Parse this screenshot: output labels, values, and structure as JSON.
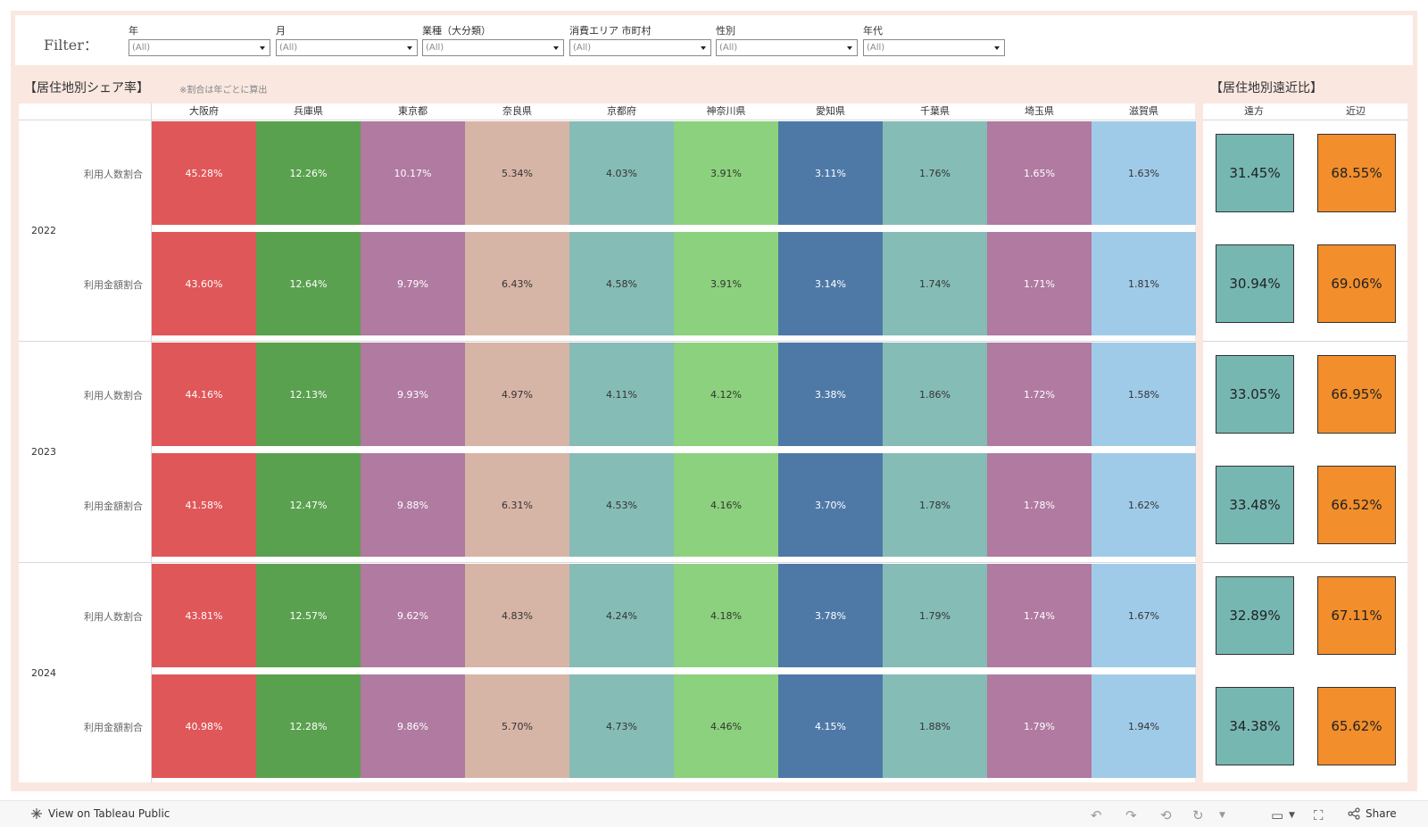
{
  "filters": {
    "title": "Filter：",
    "items": [
      {
        "label": "年",
        "value": "(All)"
      },
      {
        "label": "月",
        "value": "(All)"
      },
      {
        "label": "業種（大分類）",
        "value": "(All)"
      },
      {
        "label": "消費エリア 市町村",
        "value": "(All)"
      },
      {
        "label": "性別",
        "value": "(All)"
      },
      {
        "label": "年代",
        "value": "(All)"
      }
    ]
  },
  "share_title": "【居住地別シェア率】",
  "share_note": "※割合は年ごとに算出",
  "proximity_title": "【居住地別遠近比】",
  "toolbar": {
    "view_label": "View on Tableau Public",
    "share_label": "Share"
  },
  "chart_data": [
    {
      "type": "heatmap",
      "title": "【居住地別シェア率】",
      "columns": [
        "大阪府",
        "兵庫県",
        "東京都",
        "奈良県",
        "京都府",
        "神奈川県",
        "愛知県",
        "千葉県",
        "埼玉県",
        "滋賀県"
      ],
      "colors": [
        "#e05759",
        "#59a14e",
        "#b07aa1",
        "#d7b5a6",
        "#86bcb6",
        "#8cd17d",
        "#4e79a7",
        "#86bcb6",
        "#b07aa1",
        "#a0cbe8"
      ],
      "text_colors": [
        "#ffffff",
        "#ffffff",
        "#ffffff",
        "#333333",
        "#333333",
        "#333333",
        "#ffffff",
        "#333333",
        "#ffffff",
        "#333333"
      ],
      "rows": [
        {
          "year": "2022",
          "metric": "利用人数割合",
          "values": [
            "45.28%",
            "12.26%",
            "10.17%",
            "5.34%",
            "4.03%",
            "3.91%",
            "3.11%",
            "1.76%",
            "1.65%",
            "1.63%"
          ]
        },
        {
          "year": "2022",
          "metric": "利用金額割合",
          "values": [
            "43.60%",
            "12.64%",
            "9.79%",
            "6.43%",
            "4.58%",
            "3.91%",
            "3.14%",
            "1.74%",
            "1.71%",
            "1.81%"
          ]
        },
        {
          "year": "2023",
          "metric": "利用人数割合",
          "values": [
            "44.16%",
            "12.13%",
            "9.93%",
            "4.97%",
            "4.11%",
            "4.12%",
            "3.38%",
            "1.86%",
            "1.72%",
            "1.58%"
          ]
        },
        {
          "year": "2023",
          "metric": "利用金額割合",
          "values": [
            "41.58%",
            "12.47%",
            "9.88%",
            "6.31%",
            "4.53%",
            "4.16%",
            "3.70%",
            "1.78%",
            "1.78%",
            "1.62%"
          ]
        },
        {
          "year": "2024",
          "metric": "利用人数割合",
          "values": [
            "43.81%",
            "12.57%",
            "9.62%",
            "4.83%",
            "4.24%",
            "4.18%",
            "3.78%",
            "1.79%",
            "1.74%",
            "1.67%"
          ]
        },
        {
          "year": "2024",
          "metric": "利用金額割合",
          "values": [
            "40.98%",
            "12.28%",
            "9.86%",
            "5.70%",
            "4.73%",
            "4.46%",
            "4.15%",
            "1.88%",
            "1.79%",
            "1.94%"
          ]
        }
      ]
    },
    {
      "type": "heatmap",
      "title": "【居住地別遠近比】",
      "columns": [
        "遠方",
        "近辺"
      ],
      "colors": [
        "#76b7b2",
        "#f28e2b"
      ],
      "rows": [
        {
          "year": "2022",
          "metric": "利用人数割合",
          "values": [
            "31.45%",
            "68.55%"
          ]
        },
        {
          "year": "2022",
          "metric": "利用金額割合",
          "values": [
            "30.94%",
            "69.06%"
          ]
        },
        {
          "year": "2023",
          "metric": "利用人数割合",
          "values": [
            "33.05%",
            "66.95%"
          ]
        },
        {
          "year": "2023",
          "metric": "利用金額割合",
          "values": [
            "33.48%",
            "66.52%"
          ]
        },
        {
          "year": "2024",
          "metric": "利用人数割合",
          "values": [
            "32.89%",
            "67.11%"
          ]
        },
        {
          "year": "2024",
          "metric": "利用金額割合",
          "values": [
            "34.38%",
            "65.62%"
          ]
        }
      ]
    }
  ]
}
